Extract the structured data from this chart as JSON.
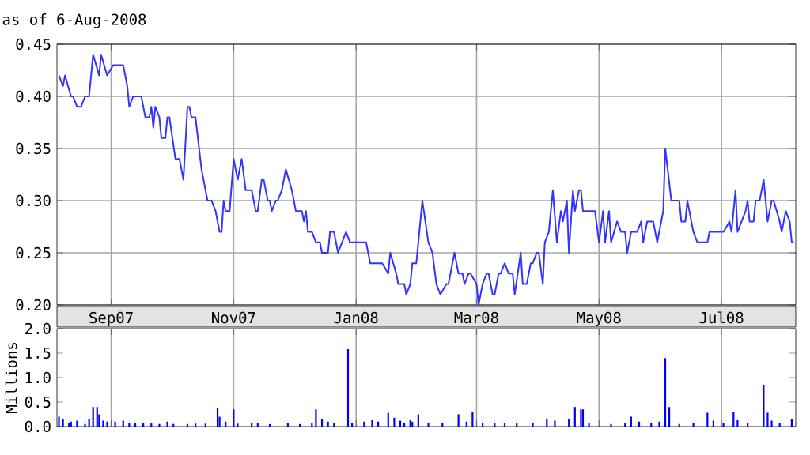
{
  "chart_data": [
    {
      "type": "line",
      "title": "as of 6-Aug-2008",
      "color": "#3333ff",
      "grid": true,
      "tick_labels": "y",
      "xlim": [
        "2007-08-05",
        "2008-08-07"
      ],
      "ylim": [
        0.2,
        0.45
      ],
      "xticks": [
        {
          "value": "2007-09-01",
          "label": null
        },
        {
          "value": "2007-11-01",
          "label": null
        },
        {
          "value": "2008-01-01",
          "label": null
        },
        {
          "value": "2008-03-01",
          "label": null
        },
        {
          "value": "2008-05-01",
          "label": null
        },
        {
          "value": "2008-07-01",
          "label": null
        }
      ],
      "yticks": [
        {
          "value": 0.2,
          "label": "0.20"
        },
        {
          "value": 0.25,
          "label": "0.25"
        },
        {
          "value": 0.3,
          "label": "0.30"
        },
        {
          "value": 0.35,
          "label": "0.35"
        },
        {
          "value": 0.4,
          "label": "0.40"
        },
        {
          "value": 0.45,
          "label": "0.45"
        }
      ],
      "x": [
        "2007-08-06",
        "2007-08-08",
        "2007-08-09",
        "2007-08-12",
        "2007-08-13",
        "2007-08-15",
        "2007-08-17",
        "2007-08-19",
        "2007-08-21",
        "2007-08-23",
        "2007-08-26",
        "2007-08-27",
        "2007-08-30",
        "2007-09-02",
        "2007-09-07",
        "2007-09-09",
        "2007-09-10",
        "2007-09-12",
        "2007-09-16",
        "2007-09-18",
        "2007-09-20",
        "2007-09-21",
        "2007-09-22",
        "2007-09-23",
        "2007-09-25",
        "2007-09-26",
        "2007-09-28",
        "2007-09-29",
        "2007-09-30",
        "2007-10-03",
        "2007-10-05",
        "2007-10-07",
        "2007-10-09",
        "2007-10-10",
        "2007-10-11",
        "2007-10-13",
        "2007-10-16",
        "2007-10-19",
        "2007-10-21",
        "2007-10-23",
        "2007-10-25",
        "2007-10-26",
        "2007-10-27",
        "2007-10-28",
        "2007-10-30",
        "2007-11-01",
        "2007-11-03",
        "2007-11-05",
        "2007-11-07",
        "2007-11-10",
        "2007-11-12",
        "2007-11-13",
        "2007-11-15",
        "2007-11-16",
        "2007-11-18",
        "2007-11-19",
        "2007-11-20",
        "2007-11-22",
        "2007-11-23",
        "2007-11-25",
        "2007-11-27",
        "2007-11-30",
        "2007-12-02",
        "2007-12-05",
        "2007-12-06",
        "2007-12-07",
        "2007-12-08",
        "2007-12-10",
        "2007-12-12",
        "2007-12-14",
        "2007-12-15",
        "2007-12-18",
        "2007-12-19",
        "2007-12-21",
        "2007-12-23",
        "2007-12-27",
        "2007-12-29",
        "2008-01-03",
        "2008-01-06",
        "2008-01-08",
        "2008-01-14",
        "2008-01-17",
        "2008-01-18",
        "2008-01-21",
        "2008-01-22",
        "2008-01-25",
        "2008-01-26",
        "2008-01-28",
        "2008-01-29",
        "2008-01-31",
        "2008-02-03",
        "2008-02-06",
        "2008-02-08",
        "2008-02-10",
        "2008-02-12",
        "2008-02-15",
        "2008-02-16",
        "2008-02-19",
        "2008-02-21",
        "2008-02-23",
        "2008-02-24",
        "2008-02-26",
        "2008-02-27",
        "2008-03-01",
        "2008-03-02",
        "2008-03-04",
        "2008-03-06",
        "2008-03-07",
        "2008-03-09",
        "2008-03-10",
        "2008-03-12",
        "2008-03-13",
        "2008-03-15",
        "2008-03-17",
        "2008-03-19",
        "2008-03-20",
        "2008-03-23",
        "2008-03-24",
        "2008-03-26",
        "2008-03-28",
        "2008-03-29",
        "2008-03-31",
        "2008-04-01",
        "2008-04-03",
        "2008-04-04",
        "2008-04-06",
        "2008-04-08",
        "2008-04-10",
        "2008-04-12",
        "2008-04-13",
        "2008-04-15",
        "2008-04-16",
        "2008-04-18",
        "2008-04-19",
        "2008-04-21",
        "2008-04-22",
        "2008-04-23",
        "2008-04-29",
        "2008-05-01",
        "2008-05-03",
        "2008-05-04",
        "2008-05-06",
        "2008-05-07",
        "2008-05-10",
        "2008-05-12",
        "2008-05-14",
        "2008-05-15",
        "2008-05-17",
        "2008-05-20",
        "2008-05-22",
        "2008-05-23",
        "2008-05-25",
        "2008-05-28",
        "2008-05-30",
        "2008-06-02",
        "2008-06-03",
        "2008-06-06",
        "2008-06-10",
        "2008-06-11",
        "2008-06-13",
        "2008-06-14",
        "2008-06-17",
        "2008-06-19",
        "2008-06-24",
        "2008-06-25",
        "2008-07-02",
        "2008-07-05",
        "2008-07-06",
        "2008-07-08",
        "2008-07-09",
        "2008-07-13",
        "2008-07-14",
        "2008-07-15",
        "2008-07-17",
        "2008-07-18",
        "2008-07-20",
        "2008-07-22",
        "2008-07-24",
        "2008-07-26",
        "2008-07-27",
        "2008-07-30",
        "2008-07-31",
        "2008-08-02",
        "2008-08-04",
        "2008-08-05",
        "2008-08-06"
      ],
      "values": [
        0.42,
        0.41,
        0.42,
        0.4,
        0.4,
        0.39,
        0.39,
        0.4,
        0.4,
        0.44,
        0.42,
        0.44,
        0.42,
        0.43,
        0.43,
        0.41,
        0.39,
        0.4,
        0.4,
        0.38,
        0.38,
        0.39,
        0.37,
        0.39,
        0.38,
        0.36,
        0.36,
        0.38,
        0.38,
        0.34,
        0.34,
        0.32,
        0.39,
        0.39,
        0.38,
        0.38,
        0.33,
        0.3,
        0.3,
        0.29,
        0.27,
        0.27,
        0.3,
        0.29,
        0.29,
        0.34,
        0.32,
        0.34,
        0.31,
        0.31,
        0.29,
        0.29,
        0.32,
        0.32,
        0.3,
        0.3,
        0.29,
        0.3,
        0.3,
        0.31,
        0.33,
        0.31,
        0.29,
        0.29,
        0.28,
        0.29,
        0.27,
        0.27,
        0.26,
        0.26,
        0.25,
        0.25,
        0.27,
        0.27,
        0.25,
        0.27,
        0.26,
        0.26,
        0.26,
        0.24,
        0.24,
        0.23,
        0.25,
        0.23,
        0.22,
        0.22,
        0.21,
        0.22,
        0.24,
        0.24,
        0.3,
        0.26,
        0.25,
        0.22,
        0.21,
        0.22,
        0.22,
        0.25,
        0.23,
        0.23,
        0.22,
        0.23,
        0.23,
        0.22,
        0.2,
        0.22,
        0.23,
        0.23,
        0.21,
        0.21,
        0.23,
        0.23,
        0.24,
        0.23,
        0.23,
        0.21,
        0.25,
        0.22,
        0.22,
        0.24,
        0.24,
        0.25,
        0.25,
        0.22,
        0.26,
        0.27,
        0.31,
        0.26,
        0.29,
        0.28,
        0.3,
        0.25,
        0.31,
        0.29,
        0.31,
        0.31,
        0.29,
        0.29,
        0.26,
        0.29,
        0.26,
        0.29,
        0.26,
        0.28,
        0.27,
        0.27,
        0.25,
        0.27,
        0.27,
        0.28,
        0.26,
        0.28,
        0.28,
        0.26,
        0.29,
        0.35,
        0.3,
        0.3,
        0.28,
        0.28,
        0.3,
        0.27,
        0.26,
        0.26,
        0.27,
        0.27,
        0.28,
        0.27,
        0.31,
        0.27,
        0.29,
        0.3,
        0.28,
        0.28,
        0.3,
        0.3,
        0.32,
        0.28,
        0.3,
        0.3,
        0.28,
        0.27,
        0.29,
        0.28,
        0.26,
        0.26
      ]
    },
    {
      "type": "bar",
      "ylabel": "Millions",
      "color": "#0000ff",
      "grid": "x",
      "xlim": [
        "2007-08-05",
        "2008-08-07"
      ],
      "ylim": [
        0,
        2
      ],
      "xticks": [
        {
          "value": "2007-09-01",
          "label": "Sep07"
        },
        {
          "value": "2007-11-01",
          "label": "Nov07"
        },
        {
          "value": "2008-01-01",
          "label": "Jan08"
        },
        {
          "value": "2008-03-01",
          "label": "Mar08"
        },
        {
          "value": "2008-05-01",
          "label": "May08"
        },
        {
          "value": "2008-07-01",
          "label": "Jul08"
        }
      ],
      "yticks": [
        {
          "value": 0,
          "label": "0.0"
        },
        {
          "value": 0.5,
          "label": "0.5"
        },
        {
          "value": 1,
          "label": "1.0"
        },
        {
          "value": 1.5,
          "label": "1.5"
        },
        {
          "value": 2,
          "label": "2.0"
        }
      ],
      "x": [
        "2007-08-06",
        "2007-08-08",
        "2007-08-11",
        "2007-08-12",
        "2007-08-15",
        "2007-08-19",
        "2007-08-21",
        "2007-08-23",
        "2007-08-25",
        "2007-08-26",
        "2007-08-28",
        "2007-08-30",
        "2007-09-03",
        "2007-09-07",
        "2007-09-10",
        "2007-09-13",
        "2007-09-17",
        "2007-09-21",
        "2007-09-25",
        "2007-09-29",
        "2007-10-02",
        "2007-10-09",
        "2007-10-13",
        "2007-10-18",
        "2007-10-24",
        "2007-10-25",
        "2007-10-28",
        "2007-11-01",
        "2007-11-03",
        "2007-11-10",
        "2007-11-13",
        "2007-11-19",
        "2007-11-28",
        "2007-12-04",
        "2007-12-10",
        "2007-12-12",
        "2007-12-15",
        "2007-12-18",
        "2007-12-21",
        "2007-12-28",
        "2007-12-30",
        "2008-01-05",
        "2008-01-09",
        "2008-01-12",
        "2008-01-17",
        "2008-01-20",
        "2008-01-23",
        "2008-01-25",
        "2008-01-28",
        "2008-01-29",
        "2008-02-01",
        "2008-02-06",
        "2008-02-13",
        "2008-02-21",
        "2008-02-25",
        "2008-02-28",
        "2008-03-04",
        "2008-03-10",
        "2008-03-15",
        "2008-03-21",
        "2008-03-29",
        "2008-04-05",
        "2008-04-09",
        "2008-04-16",
        "2008-04-19",
        "2008-04-22",
        "2008-04-23",
        "2008-04-26",
        "2008-05-07",
        "2008-05-14",
        "2008-05-17",
        "2008-05-21",
        "2008-05-27",
        "2008-05-31",
        "2008-06-03",
        "2008-06-05",
        "2008-06-10",
        "2008-06-17",
        "2008-06-24",
        "2008-06-27",
        "2008-07-02",
        "2008-07-07",
        "2008-07-09",
        "2008-07-14",
        "2008-07-22",
        "2008-07-24",
        "2008-07-26",
        "2008-07-30",
        "2008-08-05"
      ],
      "values": [
        0.2,
        0.15,
        0.07,
        0.1,
        0.12,
        0.05,
        0.15,
        0.4,
        0.4,
        0.25,
        0.12,
        0.1,
        0.1,
        0.12,
        0.08,
        0.08,
        0.08,
        0.07,
        0.05,
        0.1,
        0.05,
        0.05,
        0.06,
        0.06,
        0.37,
        0.2,
        0.1,
        0.35,
        0.06,
        0.08,
        0.08,
        0.05,
        0.08,
        0.05,
        0.07,
        0.35,
        0.15,
        0.1,
        0.08,
        1.58,
        0.08,
        0.1,
        0.13,
        0.1,
        0.28,
        0.18,
        0.12,
        0.08,
        0.13,
        0.1,
        0.25,
        0.07,
        0.07,
        0.25,
        0.1,
        0.3,
        0.07,
        0.07,
        0.07,
        0.07,
        0.07,
        0.15,
        0.12,
        0.15,
        0.4,
        0.35,
        0.35,
        0.07,
        0.05,
        0.08,
        0.2,
        0.1,
        0.07,
        0.1,
        1.4,
        0.4,
        0.05,
        0.07,
        0.28,
        0.12,
        0.07,
        0.3,
        0.13,
        0.07,
        0.85,
        0.28,
        0.12,
        0.08,
        0.15
      ]
    }
  ]
}
